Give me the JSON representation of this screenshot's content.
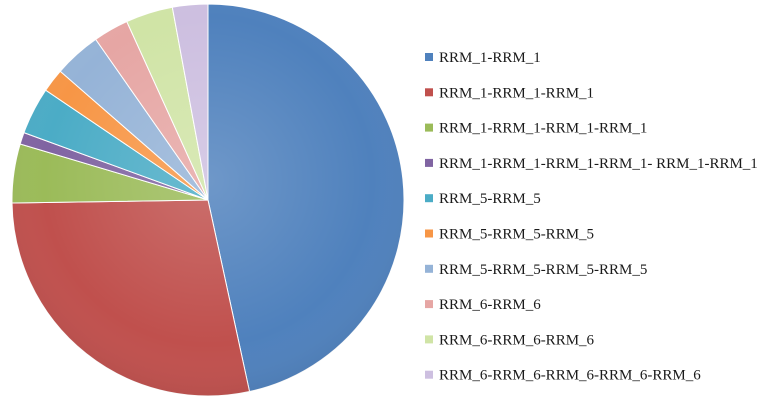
{
  "chart_data": {
    "type": "pie",
    "title": "",
    "legend_position": "right",
    "slices": [
      {
        "label": "RRM_1-RRM_1",
        "value": 48,
        "color": "#4f81bd"
      },
      {
        "label": "RRM_1-RRM_1-RRM_1",
        "value": 29,
        "color": "#c0504d"
      },
      {
        "label": "RRM_1-RRM_1-RRM_1-RRM_1",
        "value": 5,
        "color": "#9bbb59"
      },
      {
        "label": "RRM_1-RRM_1-RRM_1-RRM_1- RRM_1-RRM_1",
        "value": 1,
        "color": "#8064a2"
      },
      {
        "label": "RRM_5-RRM_5",
        "value": 4,
        "color": "#4bacc6"
      },
      {
        "label": "RRM_5-RRM_5-RRM_5",
        "value": 2,
        "color": "#f79646"
      },
      {
        "label": "RRM_5-RRM_5-RRM_5-RRM_5",
        "value": 4,
        "color": "#95b3d7"
      },
      {
        "label": "RRM_6-RRM_6",
        "value": 3,
        "color": "#e6a6a4"
      },
      {
        "label": "RRM_6-RRM_6-RRM_6",
        "value": 4,
        "color": "#d0e4a6"
      },
      {
        "label": "RRM_6-RRM_6-RRM_6-RRM_6-RRM_6",
        "value": 3,
        "color": "#cdbfe0"
      }
    ]
  }
}
